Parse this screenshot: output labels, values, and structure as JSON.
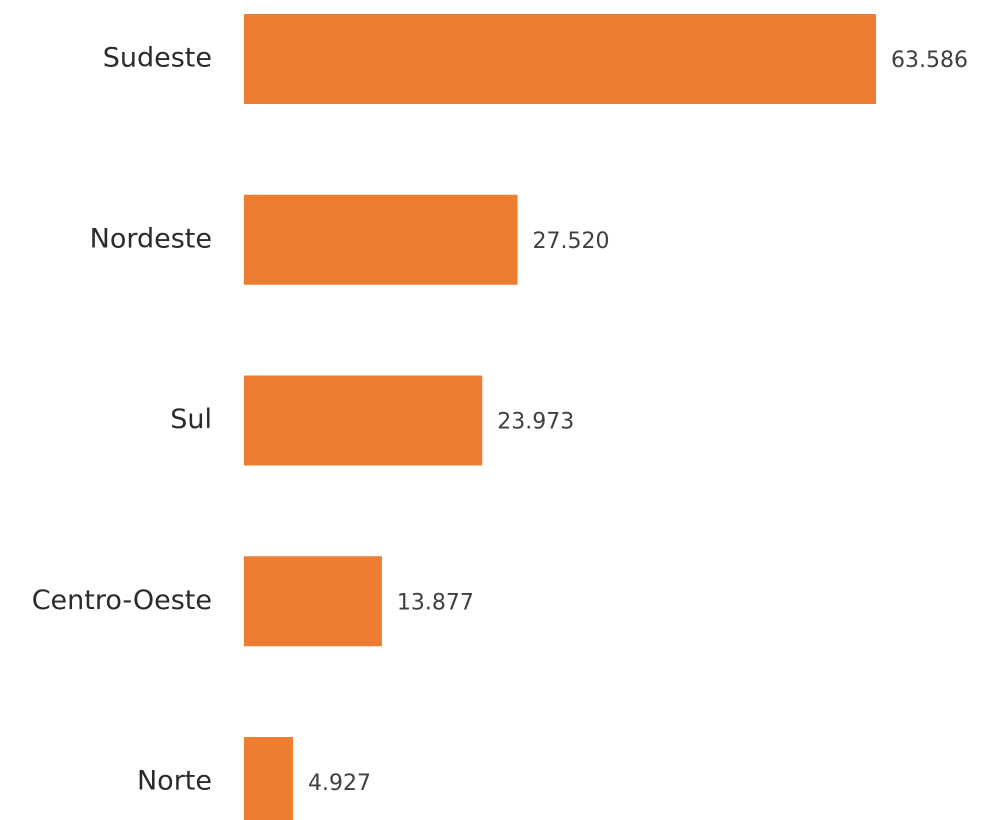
{
  "chart_data": {
    "type": "bar",
    "orientation": "horizontal",
    "categories": [
      "Sudeste",
      "Nordeste",
      "Sul",
      "Centro-Oeste",
      "Norte"
    ],
    "values": [
      63586,
      27520,
      23973,
      13877,
      4927
    ],
    "value_labels": [
      "63.586",
      "27.520",
      "23.973",
      "13.877",
      "4.927"
    ],
    "color": "#ed7d31"
  }
}
